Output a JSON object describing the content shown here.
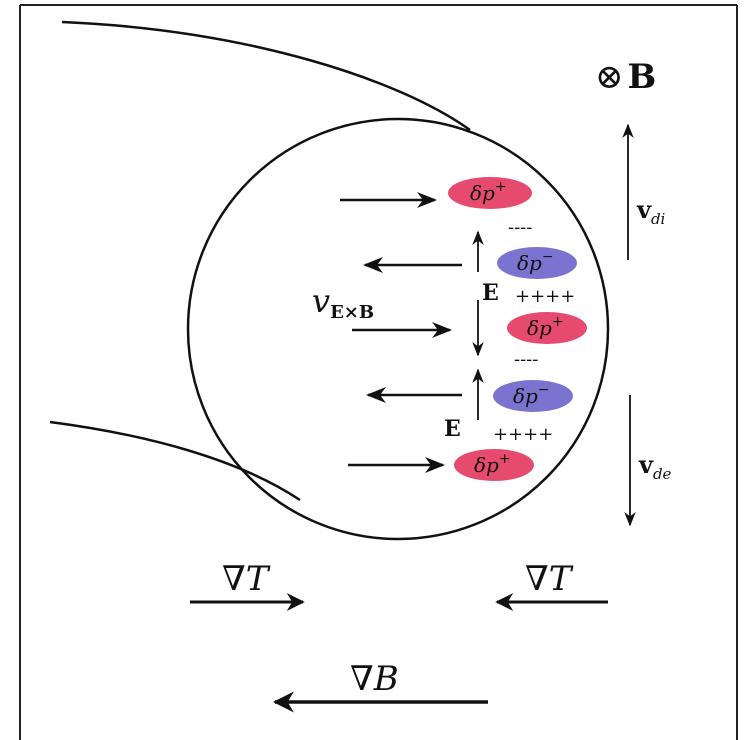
{
  "field": {
    "symbol": "⊗",
    "name": "B"
  },
  "drifts": {
    "ion": {
      "base": "v",
      "sub": "di"
    },
    "electron": {
      "base": "v",
      "sub": "de"
    },
    "exb": {
      "base": "v",
      "sub": "E×B"
    }
  },
  "blobs": [
    {
      "base": "δp",
      "sup": "+"
    },
    {
      "base": "δp",
      "sup": "−"
    },
    {
      "base": "δp",
      "sup": "+"
    },
    {
      "base": "δp",
      "sup": "−"
    },
    {
      "base": "δp",
      "sup": "+"
    }
  ],
  "charges": [
    "----",
    "++++",
    "----",
    "++++"
  ],
  "fields": [
    "E",
    "E"
  ],
  "gradients": {
    "temperature_left": "∇T",
    "temperature_right": "∇T",
    "magnetic": "∇B"
  }
}
